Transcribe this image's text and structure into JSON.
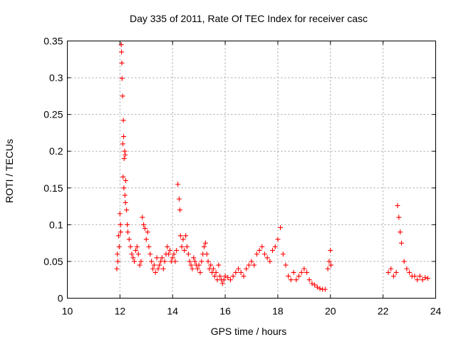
{
  "chart_data": {
    "type": "scatter",
    "title": "Day 335 of 2011, Rate Of TEC Index for receiver casc",
    "xlabel": "GPS time / hours",
    "ylabel": "ROTI / TECUs",
    "xlim": [
      10,
      24
    ],
    "ylim": [
      0,
      0.35
    ],
    "xticks": [
      "10",
      "12",
      "14",
      "16",
      "18",
      "20",
      "22",
      "24"
    ],
    "yticks": [
      "0",
      "0.05",
      "0.1",
      "0.15",
      "0.2",
      "0.25",
      "0.3",
      "0.35"
    ],
    "grid": true,
    "marker": "+",
    "color": "#ff0000",
    "series": [
      {
        "x": [
          12.05,
          12.07,
          12.08,
          12.1,
          12.06,
          12.13,
          12.11,
          12.14,
          12.18,
          12.2,
          12.16,
          12.22,
          12.12,
          12.15,
          12.19,
          12.21,
          12.0,
          12.02,
          12.03,
          11.95,
          11.9,
          11.88,
          11.92,
          11.97,
          12.25,
          12.28,
          12.3,
          12.35,
          12.4,
          12.45,
          12.5,
          12.55,
          12.6,
          12.65,
          12.7,
          12.75,
          12.8,
          12.85,
          12.9,
          12.95,
          13.0,
          13.05,
          13.1,
          13.15,
          13.2,
          13.25,
          13.3,
          13.35,
          13.4,
          13.45,
          13.5,
          13.55,
          13.6,
          13.65,
          13.7,
          13.75,
          13.8,
          13.85,
          13.9,
          13.95,
          14.0,
          14.05,
          14.1,
          14.15,
          14.2,
          14.25,
          14.28,
          14.3,
          14.35,
          14.4,
          14.45,
          14.5,
          14.55,
          14.6,
          14.65,
          14.7,
          14.75,
          14.8,
          14.85,
          14.9,
          14.95,
          15.0,
          15.05,
          15.1,
          15.15,
          15.2,
          15.25,
          15.3,
          15.35,
          15.4,
          15.45,
          15.5,
          15.55,
          15.6,
          15.65,
          15.7,
          15.75,
          15.8,
          15.85,
          15.9,
          15.95,
          16.0,
          16.1,
          16.2,
          16.3,
          16.4,
          16.5,
          16.6,
          16.7,
          16.8,
          16.9,
          17.0,
          17.1,
          17.2,
          17.3,
          17.4,
          17.5,
          17.6,
          17.7,
          17.8,
          17.9,
          18.0,
          18.1,
          18.2,
          18.3,
          18.4,
          18.5,
          18.6,
          18.7,
          18.8,
          18.9,
          19.0,
          19.1,
          19.2,
          19.3,
          19.4,
          19.5,
          19.6,
          19.7,
          19.8,
          19.9,
          19.95,
          20.0,
          20.02,
          22.2,
          22.3,
          22.4,
          22.5,
          22.55,
          22.6,
          22.65,
          22.7,
          22.8,
          22.9,
          23.0,
          23.1,
          23.2,
          23.3,
          23.4,
          23.5,
          23.6,
          23.7
        ],
        "y": [
          0.345,
          0.32,
          0.299,
          0.275,
          0.335,
          0.242,
          0.21,
          0.22,
          0.2,
          0.195,
          0.19,
          0.16,
          0.165,
          0.15,
          0.14,
          0.13,
          0.115,
          0.1,
          0.09,
          0.085,
          0.06,
          0.04,
          0.05,
          0.07,
          0.12,
          0.1,
          0.09,
          0.08,
          0.07,
          0.06,
          0.055,
          0.05,
          0.065,
          0.07,
          0.06,
          0.045,
          0.05,
          0.11,
          0.1,
          0.095,
          0.08,
          0.09,
          0.07,
          0.06,
          0.05,
          0.04,
          0.045,
          0.035,
          0.055,
          0.04,
          0.045,
          0.05,
          0.055,
          0.04,
          0.05,
          0.06,
          0.07,
          0.06,
          0.065,
          0.05,
          0.055,
          0.06,
          0.05,
          0.065,
          0.155,
          0.135,
          0.12,
          0.085,
          0.07,
          0.08,
          0.065,
          0.085,
          0.07,
          0.06,
          0.05,
          0.045,
          0.04,
          0.055,
          0.05,
          0.045,
          0.04,
          0.045,
          0.035,
          0.05,
          0.06,
          0.07,
          0.075,
          0.06,
          0.05,
          0.04,
          0.045,
          0.035,
          0.04,
          0.03,
          0.035,
          0.025,
          0.045,
          0.03,
          0.025,
          0.02,
          0.025,
          0.03,
          0.028,
          0.025,
          0.03,
          0.035,
          0.04,
          0.035,
          0.03,
          0.04,
          0.045,
          0.05,
          0.045,
          0.06,
          0.065,
          0.07,
          0.06,
          0.055,
          0.05,
          0.065,
          0.07,
          0.08,
          0.096,
          0.06,
          0.045,
          0.03,
          0.025,
          0.035,
          0.025,
          0.03,
          0.035,
          0.04,
          0.035,
          0.025,
          0.02,
          0.018,
          0.015,
          0.013,
          0.012,
          0.012,
          0.04,
          0.05,
          0.065,
          0.045,
          0.035,
          0.04,
          0.03,
          0.035,
          0.126,
          0.11,
          0.09,
          0.075,
          0.05,
          0.04,
          0.035,
          0.03,
          0.03,
          0.025,
          0.03,
          0.025,
          0.028,
          0.027
        ]
      }
    ]
  }
}
